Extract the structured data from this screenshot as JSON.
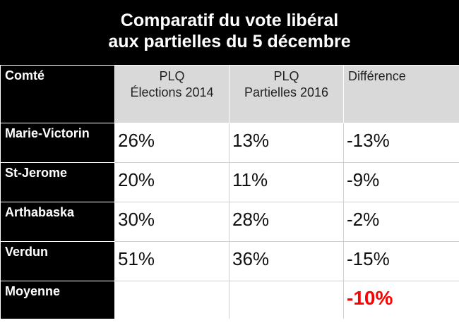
{
  "title": {
    "line1": "Comparatif du vote libéral",
    "line2": "aux partielles du 5 décembre"
  },
  "chart_data": {
    "type": "table",
    "title": "Comparatif du vote libéral aux partielles du 5 décembre",
    "columns": [
      "Comté",
      "PLQ Élections 2014",
      "PLQ Partielles 2016",
      "Différence"
    ],
    "header": {
      "col0": "Comté",
      "col1_line1": "PLQ",
      "col1_line2": "Élections 2014",
      "col2_line1": "PLQ",
      "col2_line2": "Partielles 2016",
      "col3": "Différence"
    },
    "rows": [
      {
        "county": "Marie-Victorin",
        "elections_2014": "26%",
        "partielles_2016": "13%",
        "difference": "-13%"
      },
      {
        "county": "St-Jerome",
        "elections_2014": "20%",
        "partielles_2016": "11%",
        "difference": "-9%"
      },
      {
        "county": "Arthabaska",
        "elections_2014": "30%",
        "partielles_2016": "28%",
        "difference": "-2%"
      },
      {
        "county": "Verdun",
        "elections_2014": "51%",
        "partielles_2016": "36%",
        "difference": "-15%"
      }
    ],
    "average": {
      "label": "Moyenne",
      "elections_2014": "",
      "partielles_2016": "",
      "difference": "-10%"
    },
    "colors": {
      "title_bg": "#000000",
      "header_bg": "#d9d9d9",
      "average_highlight": "#ff0000"
    }
  }
}
